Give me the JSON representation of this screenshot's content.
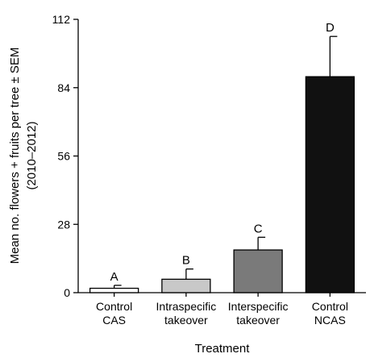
{
  "chart_data": {
    "type": "bar",
    "categories": [
      [
        "Control",
        "CAS"
      ],
      [
        "Intraspecific",
        "takeover"
      ],
      [
        "Interspecific",
        "takeover"
      ],
      [
        "Control",
        "NCAS"
      ]
    ],
    "values": [
      1.8,
      5.5,
      17.5,
      88.5
    ],
    "errors": [
      1.2,
      4.2,
      5.2,
      16.5
    ],
    "significance_labels": [
      "A",
      "B",
      "C",
      "D"
    ],
    "bar_colors": [
      "#ffffff",
      "#c8c8c8",
      "#7a7a7a",
      "#111111"
    ],
    "xlabel": "Treatment",
    "ylabel": [
      "Mean no. flowers + fruits per tree ± SEM",
      "(2010–2012)"
    ],
    "yticks": [
      0,
      28,
      56,
      84,
      112
    ],
    "ylim": [
      0,
      112
    ],
    "grid": false,
    "legend": "none"
  }
}
